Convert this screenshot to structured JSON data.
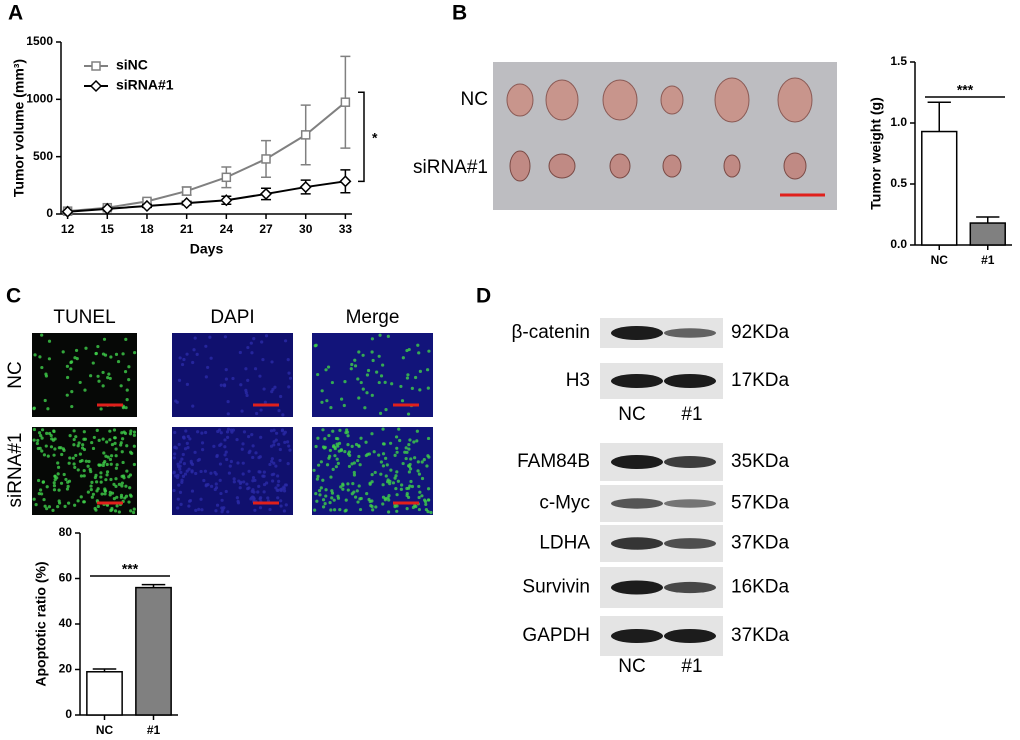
{
  "figure": {
    "panels": [
      "A",
      "B",
      "C",
      "D"
    ],
    "tumor_photo": {
      "rows": [
        "NC",
        "siRNA#1"
      ]
    },
    "tunel": {
      "columns": [
        "TUNEL",
        "DAPI",
        "Merge"
      ],
      "rows": [
        "NC",
        "siRNA#1"
      ]
    },
    "western_blot": [
      {
        "rows": [
          {
            "protein": "β-catenin",
            "size": "92KDa"
          },
          {
            "protein": "H3",
            "size": "17KDa"
          }
        ],
        "lanes": [
          "NC",
          "#1"
        ]
      },
      {
        "rows": [
          {
            "protein": "FAM84B",
            "size": "35KDa"
          },
          {
            "protein": "c-Myc",
            "size": "57KDa"
          },
          {
            "protein": "LDHA",
            "size": "37KDa"
          },
          {
            "protein": "Survivin",
            "size": "16KDa"
          },
          {
            "protein": "GAPDH",
            "size": "37KDa"
          }
        ],
        "lanes": [
          "NC",
          "#1"
        ]
      }
    ]
  },
  "chart_data": [
    {
      "type": "line",
      "xlabel": "Days",
      "ylabel": "Tumor volume (mm³)",
      "x": [
        12,
        15,
        18,
        21,
        24,
        27,
        30,
        33
      ],
      "series": [
        {
          "name": "siNC",
          "color": "#808080",
          "marker": "square",
          "values": [
            25,
            55,
            110,
            200,
            320,
            480,
            690,
            975
          ],
          "errors": [
            5,
            10,
            20,
            35,
            90,
            160,
            260,
            400
          ]
        },
        {
          "name": "siRNA#1",
          "color": "#000000",
          "marker": "diamond",
          "values": [
            20,
            45,
            70,
            95,
            120,
            175,
            235,
            285
          ],
          "errors": [
            5,
            8,
            12,
            15,
            35,
            50,
            60,
            100
          ]
        }
      ],
      "xlim": [
        11.5,
        33.5
      ],
      "xticks": [
        12,
        15,
        18,
        21,
        24,
        27,
        30,
        33
      ],
      "ylim": [
        0,
        1500
      ],
      "yticks": [
        0,
        500,
        1000,
        1500
      ],
      "legend": "upper left",
      "annotation": "*"
    },
    {
      "type": "bar",
      "ylabel": "Tumor weight (g)",
      "categories": [
        "NC",
        "#1"
      ],
      "values": [
        0.93,
        0.18
      ],
      "errors": [
        0.24,
        0.05
      ],
      "colors": [
        "#ffffff",
        "#808080"
      ],
      "ylim": [
        0,
        1.5
      ],
      "yticks": [
        {
          "value": 0,
          "label": "0.0"
        },
        0.5,
        {
          "value": 1,
          "label": "1.0"
        },
        1.5
      ],
      "annotation": "***"
    },
    {
      "type": "bar",
      "ylabel": "Apoptotic ratio (%)",
      "categories": [
        "NC",
        "#1"
      ],
      "values": [
        19,
        56
      ],
      "errors": [
        1.2,
        1.3
      ],
      "colors": [
        "#ffffff",
        "#808080"
      ],
      "ylim": [
        0,
        80
      ],
      "yticks": [
        0,
        20,
        40,
        60,
        80
      ],
      "annotation": "***"
    }
  ]
}
